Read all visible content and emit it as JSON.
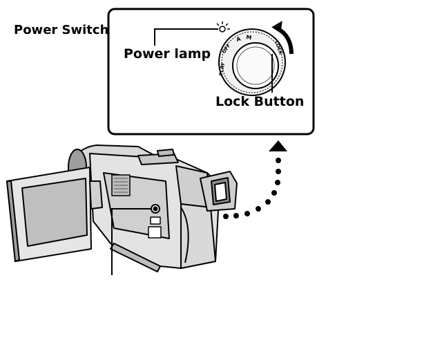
{
  "labels": {
    "power_switch": "Power Switch",
    "power_lamp": "Power lamp",
    "lock_button": "Lock Button"
  },
  "dial_markings": [
    "M",
    "A",
    "OFF",
    "PLAY",
    "LOCK"
  ],
  "colors": {
    "ink": "#000000",
    "background": "#ffffff",
    "body_light": "#e6e6e6",
    "body_mid": "#bdbdbd",
    "body_dark": "#7a7a7a"
  }
}
